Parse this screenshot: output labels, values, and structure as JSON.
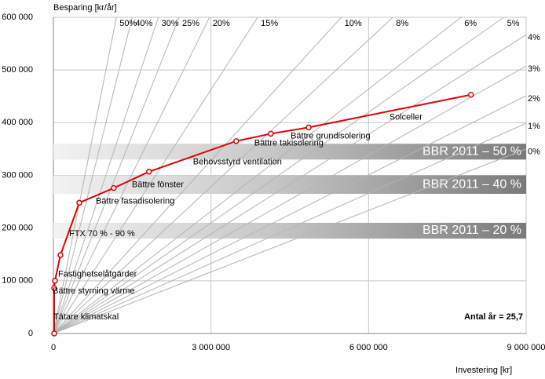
{
  "chart_data": {
    "type": "line",
    "x_label": "Investering [kr]",
    "y_label": "Besparing [kr/år]",
    "xlim": [
      0,
      9000000
    ],
    "ylim": [
      0,
      600000
    ],
    "xticks": [
      {
        "value": 0,
        "label": "0"
      },
      {
        "value": 3000000,
        "label": "3 000 000"
      },
      {
        "value": 6000000,
        "label": "6 000 000"
      },
      {
        "value": 9000000,
        "label": "9 000 000"
      }
    ],
    "yticks": [
      {
        "value": 0,
        "label": "0"
      },
      {
        "value": 100000,
        "label": "100 000"
      },
      {
        "value": 200000,
        "label": "200 000"
      },
      {
        "value": 300000,
        "label": "300 000"
      },
      {
        "value": 400000,
        "label": "400 000"
      },
      {
        "value": 500000,
        "label": "500 000"
      },
      {
        "value": 600000,
        "label": "600 000"
      }
    ],
    "grid": true,
    "years": {
      "value": 25.7,
      "label": "Antal år = 25,7"
    },
    "rates": [
      {
        "value": 50,
        "label": "50%"
      },
      {
        "value": 40,
        "label": "40%"
      },
      {
        "value": 30,
        "label": "30%"
      },
      {
        "value": 25,
        "label": "25%"
      },
      {
        "value": 20,
        "label": "20%"
      },
      {
        "value": 15,
        "label": "15%"
      },
      {
        "value": 10,
        "label": "10%"
      },
      {
        "value": 8,
        "label": "8%"
      },
      {
        "value": 6,
        "label": "6%"
      },
      {
        "value": 5,
        "label": "5%"
      },
      {
        "value": 4,
        "label": "4%"
      },
      {
        "value": 3,
        "label": "3%"
      },
      {
        "value": 2,
        "label": "2%"
      },
      {
        "value": 1,
        "label": "1%"
      },
      {
        "value": 0,
        "label": "0%"
      }
    ],
    "bands": [
      {
        "label": "BBR 2011 – 50 %",
        "range": [
          330000,
          360000
        ]
      },
      {
        "label": "BBR 2011 – 40 %",
        "range": [
          265000,
          300000
        ]
      },
      {
        "label": "BBR 2011 – 20 %",
        "range": [
          180000,
          210000
        ]
      }
    ],
    "series": [
      {
        "color": "#e00000",
        "x": [
          15000,
          15000,
          30000,
          135000,
          493000,
          1150000,
          1820000,
          3480000,
          4140000,
          4860000,
          7950000
        ],
        "values": [
          0,
          86000,
          100000,
          149000,
          248000,
          276000,
          307000,
          365000,
          379000,
          391000,
          453000
        ],
        "labels": [
          "Tätare klimatskal",
          "Bättre styrning värme",
          "Fastighetselåtgärder",
          "FTX 70 % - 90 %",
          "Bättre fasadisolering",
          "Bättre fönster",
          "Behovsstyrd ventilation",
          "Bättre takisolering",
          null,
          "Bättre grundisolering",
          "Solceller"
        ]
      }
    ]
  }
}
